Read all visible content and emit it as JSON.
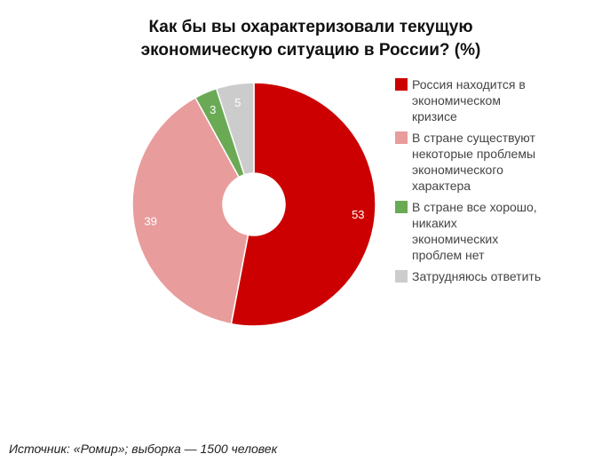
{
  "chart_data": {
    "type": "pie",
    "donut": true,
    "title": "Как бы вы охарактеризовали текущую экономическую ситуацию в России? (%)",
    "title_lines": [
      "Как бы вы охарактеризовали текущую",
      "экономическую ситуацию в России? (%)"
    ],
    "categories": [
      "Россия находится в экономическом кризисе",
      "В стране существуют некоторые проблемы экономического характера",
      "В стране все хорошо, никаких экономических проблем нет",
      "Затрудняюсь ответить"
    ],
    "values": [
      53,
      39,
      3,
      5
    ],
    "data_labels": [
      "53",
      "39",
      "3",
      "5"
    ],
    "colors": [
      "#cc0000",
      "#e89c9c",
      "#6aaa55",
      "#cccccc"
    ],
    "legend_position": "right"
  },
  "source": "Источник: «Ромир»; выборка — 1500 человек"
}
